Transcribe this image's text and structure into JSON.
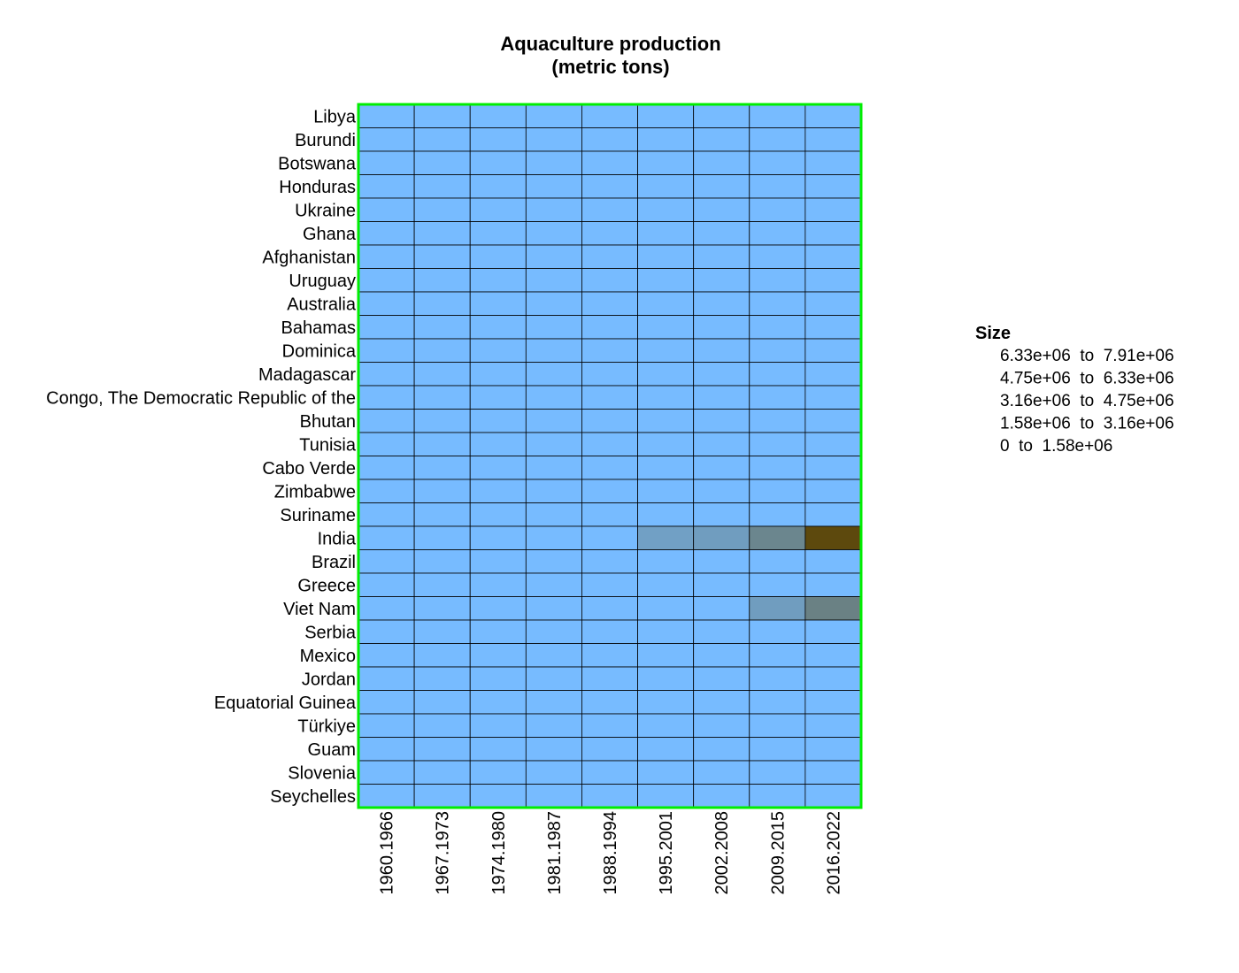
{
  "chart_data": {
    "type": "heatmap",
    "title_lines": [
      "Aquaculture production",
      "(metric tons)"
    ],
    "x": [
      "1960.1966",
      "1967.1973",
      "1974.1980",
      "1981.1987",
      "1988.1994",
      "1995.2001",
      "2002.2008",
      "2009.2015",
      "2016.2022"
    ],
    "y": [
      "Libya",
      "Burundi",
      "Botswana",
      "Honduras",
      "Ukraine",
      "Ghana",
      "Afghanistan",
      "Uruguay",
      "Australia",
      "Bahamas",
      "Dominica",
      "Madagascar",
      "Congo, The Democratic Republic of the",
      "Bhutan",
      "Tunisia",
      "Cabo Verde",
      "Zimbabwe",
      "Suriname",
      "India",
      "Brazil",
      "Greece",
      "Viet Nam",
      "Serbia",
      "Mexico",
      "Jordan",
      "Equatorial Guinea",
      "Türkiye",
      "Guam",
      "Slovenia",
      "Seychelles"
    ],
    "values": [
      [
        0,
        0,
        0,
        0,
        0,
        0,
        0,
        0,
        0
      ],
      [
        0,
        0,
        0,
        0,
        0,
        0,
        0,
        0,
        0
      ],
      [
        0,
        0,
        0,
        0,
        0,
        0,
        0,
        0,
        0
      ],
      [
        0,
        0,
        0,
        0,
        0,
        0,
        0,
        0,
        0
      ],
      [
        0,
        0,
        0,
        0,
        0,
        0,
        0,
        0,
        0
      ],
      [
        0,
        0,
        0,
        0,
        0,
        0,
        0,
        0,
        0
      ],
      [
        0,
        0,
        0,
        0,
        0,
        0,
        0,
        0,
        0
      ],
      [
        0,
        0,
        0,
        0,
        0,
        0,
        0,
        0,
        0
      ],
      [
        0,
        0,
        0,
        0,
        0,
        0,
        0,
        0,
        0
      ],
      [
        0,
        0,
        0,
        0,
        0,
        0,
        0,
        0,
        0
      ],
      [
        0,
        0,
        0,
        0,
        0,
        0,
        0,
        0,
        0
      ],
      [
        0,
        0,
        0,
        0,
        0,
        0,
        0,
        0,
        0
      ],
      [
        0,
        0,
        0,
        0,
        0,
        0,
        0,
        0,
        0
      ],
      [
        0,
        0,
        0,
        0,
        0,
        0,
        0,
        0,
        0
      ],
      [
        0,
        0,
        0,
        0,
        0,
        0,
        0,
        0,
        0
      ],
      [
        0,
        0,
        0,
        0,
        0,
        0,
        0,
        0,
        0
      ],
      [
        0,
        0,
        0,
        0,
        0,
        0,
        0,
        0,
        0
      ],
      [
        0,
        0,
        0,
        0,
        0,
        0,
        0,
        0,
        0
      ],
      [
        0,
        0,
        0,
        0,
        0,
        1800000,
        2000000,
        3500000,
        7500000
      ],
      [
        0,
        0,
        0,
        0,
        0,
        0,
        0,
        0,
        0
      ],
      [
        0,
        0,
        0,
        0,
        0,
        0,
        0,
        0,
        0
      ],
      [
        0,
        0,
        0,
        0,
        0,
        0,
        0,
        2000000,
        3800000
      ],
      [
        0,
        0,
        0,
        0,
        0,
        0,
        0,
        0,
        0
      ],
      [
        0,
        0,
        0,
        0,
        0,
        0,
        0,
        0,
        0
      ],
      [
        0,
        0,
        0,
        0,
        0,
        0,
        0,
        0,
        0
      ],
      [
        0,
        0,
        0,
        0,
        0,
        0,
        0,
        0,
        0
      ],
      [
        0,
        0,
        0,
        0,
        0,
        0,
        0,
        0,
        0
      ],
      [
        0,
        0,
        0,
        0,
        0,
        0,
        0,
        0,
        0
      ],
      [
        0,
        0,
        0,
        0,
        0,
        0,
        0,
        0,
        0
      ],
      [
        0,
        0,
        0,
        0,
        0,
        0,
        0,
        0,
        0
      ]
    ],
    "color_range": {
      "min": 0,
      "max": 7910000,
      "low_color": "#77bbff",
      "high_color": "#5c4300"
    },
    "grid_color": "#000000",
    "frame_color": "#00ee00",
    "legend": {
      "title": "Size",
      "placement": "right",
      "entries": [
        "6.33e+06  to  7.91e+06",
        "4.75e+06  to  6.33e+06",
        "3.16e+06  to  4.75e+06",
        "1.58e+06  to  3.16e+06",
        "0  to  1.58e+06"
      ]
    }
  }
}
